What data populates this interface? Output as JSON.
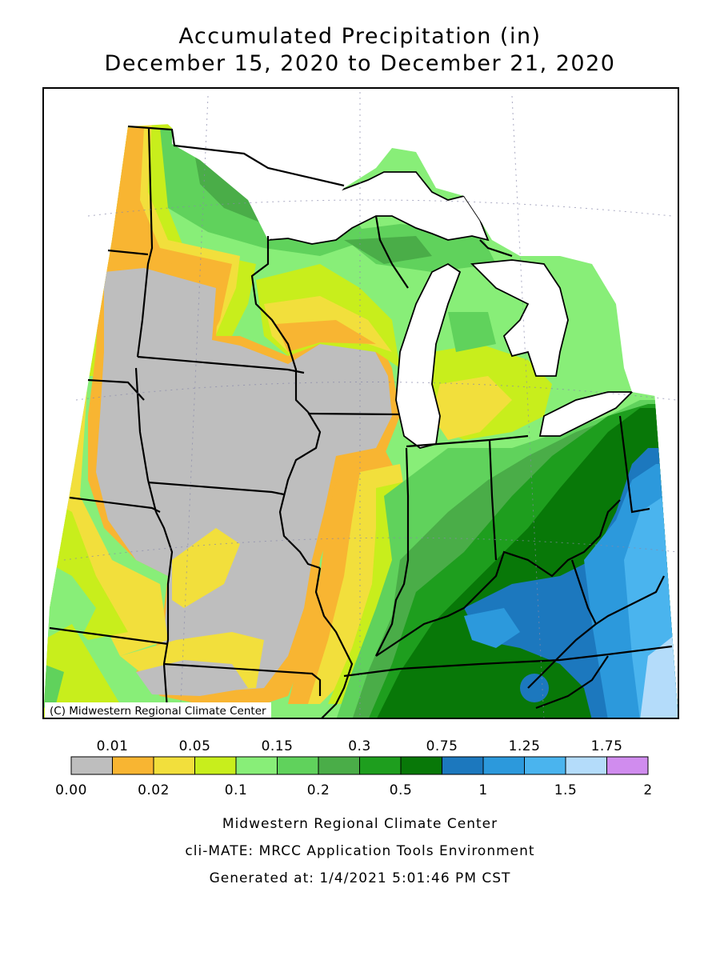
{
  "title": {
    "line1": "Accumulated Precipitation (in)",
    "line2": "December 15, 2020 to December 21, 2020"
  },
  "map": {
    "credit": "(C) Midwestern Regional Climate Center",
    "lake_color": "#ffffff",
    "border_color": "#000000"
  },
  "legend": {
    "top_labels": [
      "0.01",
      "0.05",
      "0.15",
      "0.3",
      "0.75",
      "1.25",
      "1.75"
    ],
    "bottom_labels": [
      "0.00",
      "0.02",
      "0.1",
      "0.2",
      "0.5",
      "1",
      "1.5",
      "2"
    ],
    "bins": [
      {
        "range": "0.00-0.01",
        "color": "#bebebe"
      },
      {
        "range": "0.01-0.02",
        "color": "#f8b532"
      },
      {
        "range": "0.02-0.05",
        "color": "#f2df3c"
      },
      {
        "range": "0.05-0.1",
        "color": "#c8ee1c"
      },
      {
        "range": "0.1-0.15",
        "color": "#88ee78"
      },
      {
        "range": "0.15-0.2",
        "color": "#60d25c"
      },
      {
        "range": "0.2-0.3",
        "color": "#4aad48"
      },
      {
        "range": "0.3-0.5",
        "color": "#1e9e1e"
      },
      {
        "range": "0.5-0.75",
        "color": "#087808"
      },
      {
        "range": "0.75-1",
        "color": "#1c78be"
      },
      {
        "range": "1-1.25",
        "color": "#2c99dc"
      },
      {
        "range": "1.25-1.5",
        "color": "#4ab4ee"
      },
      {
        "range": "1.5-1.75",
        "color": "#b4dcfa"
      },
      {
        "range": "1.75-2",
        "color": "#d08cee"
      }
    ]
  },
  "footer": {
    "line1": "Midwestern Regional Climate Center",
    "line2": "cli-MATE: MRCC Application Tools Environment",
    "line3": "Generated at: 1/4/2021 5:01:46 PM CST"
  }
}
